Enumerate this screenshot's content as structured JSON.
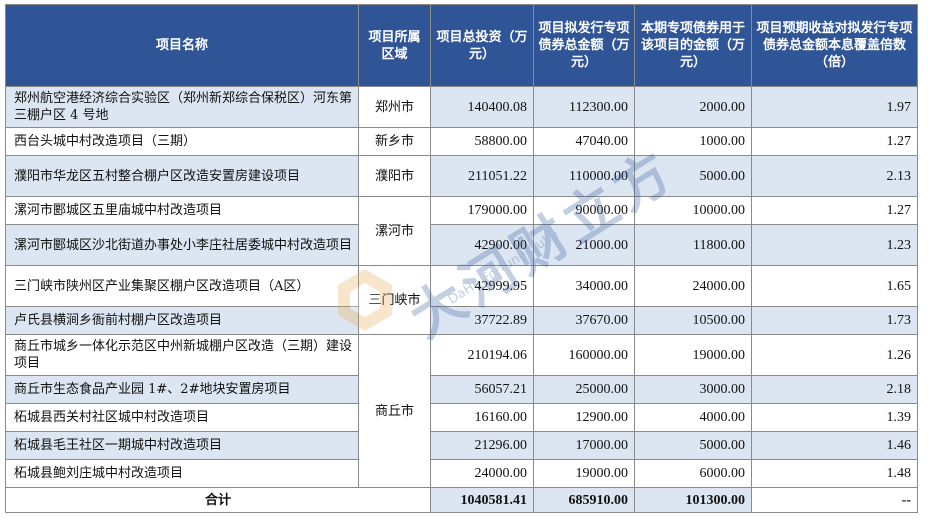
{
  "headers": {
    "name": "项目名称",
    "region": "项目所属区域",
    "total_investment": "项目总投资（万元）",
    "planned_bonds": "项目拟发行专项债券总金额（万元）",
    "current_bonds": "本期专项债券用于该项目的金额（万元）",
    "coverage": "项目预期收益对拟发行专项债券总金额本息覆盖倍数（倍）"
  },
  "rows": [
    {
      "name": "郑州航空港经济综合实验区（郑州新郑综合保税区）河东第三棚户区 4 号地",
      "total": "140400.08",
      "planned": "112300.00",
      "current": "2000.00",
      "coverage": "1.97"
    },
    {
      "name": "西台头城中村改造项目（三期）",
      "total": "58800.00",
      "planned": "47040.00",
      "current": "1000.00",
      "coverage": "1.27"
    },
    {
      "name": "濮阳市华龙区五村整合棚户区改造安置房建设项目",
      "total": "211051.22",
      "planned": "110000.00",
      "current": "5000.00",
      "coverage": "2.13"
    },
    {
      "name": "漯河市郾城区五里庙城中村改造项目",
      "total": "179000.00",
      "planned": "90000.00",
      "current": "10000.00",
      "coverage": "1.27"
    },
    {
      "name": "漯河市郾城区沙北街道办事处小李庄社居委城中村改造项目",
      "total": "42900.00",
      "planned": "21000.00",
      "current": "11800.00",
      "coverage": "1.23"
    },
    {
      "name": "三门峡市陕州区产业集聚区棚户区改造项目（A区）",
      "total": "42999.95",
      "planned": "34000.00",
      "current": "24000.00",
      "coverage": "1.65"
    },
    {
      "name": "卢氏县横涧乡衙前村棚户区改造项目",
      "total": "37722.89",
      "planned": "37670.00",
      "current": "10500.00",
      "coverage": "1.73"
    },
    {
      "name": "商丘市城乡一体化示范区中州新城棚户区改造（三期）建设项目",
      "total": "210194.06",
      "planned": "160000.00",
      "current": "19000.00",
      "coverage": "1.26"
    },
    {
      "name": "商丘市生态食品产业园 1#、2#地块安置房项目",
      "total": "56057.21",
      "planned": "25000.00",
      "current": "3000.00",
      "coverage": "2.18"
    },
    {
      "name": "柘城县西关村社区城中村改造项目",
      "total": "16160.00",
      "planned": "12900.00",
      "current": "4000.00",
      "coverage": "1.39"
    },
    {
      "name": "柘城县毛王社区一期城中村改造项目",
      "total": "21296.00",
      "planned": "17000.00",
      "current": "5000.00",
      "coverage": "1.46"
    },
    {
      "name": "柘城县鲍刘庄城中村改造项目",
      "total": "24000.00",
      "planned": "19000.00",
      "current": "6000.00",
      "coverage": "1.48"
    }
  ],
  "regions": [
    "郑州市",
    "新乡市",
    "濮阳市",
    "漯河市",
    "三门峡市",
    "商丘市"
  ],
  "totals": {
    "label": "合计",
    "total": "1040581.41",
    "planned": "685910.00",
    "current": "101300.00",
    "coverage": "--"
  },
  "watermark": {
    "main": "大河财立方",
    "sub": "DaHe Fortune Cube"
  },
  "colors": {
    "header_bg": "#2f5597",
    "row_alt": "#dce6f2",
    "border": "#8a8a8a"
  }
}
